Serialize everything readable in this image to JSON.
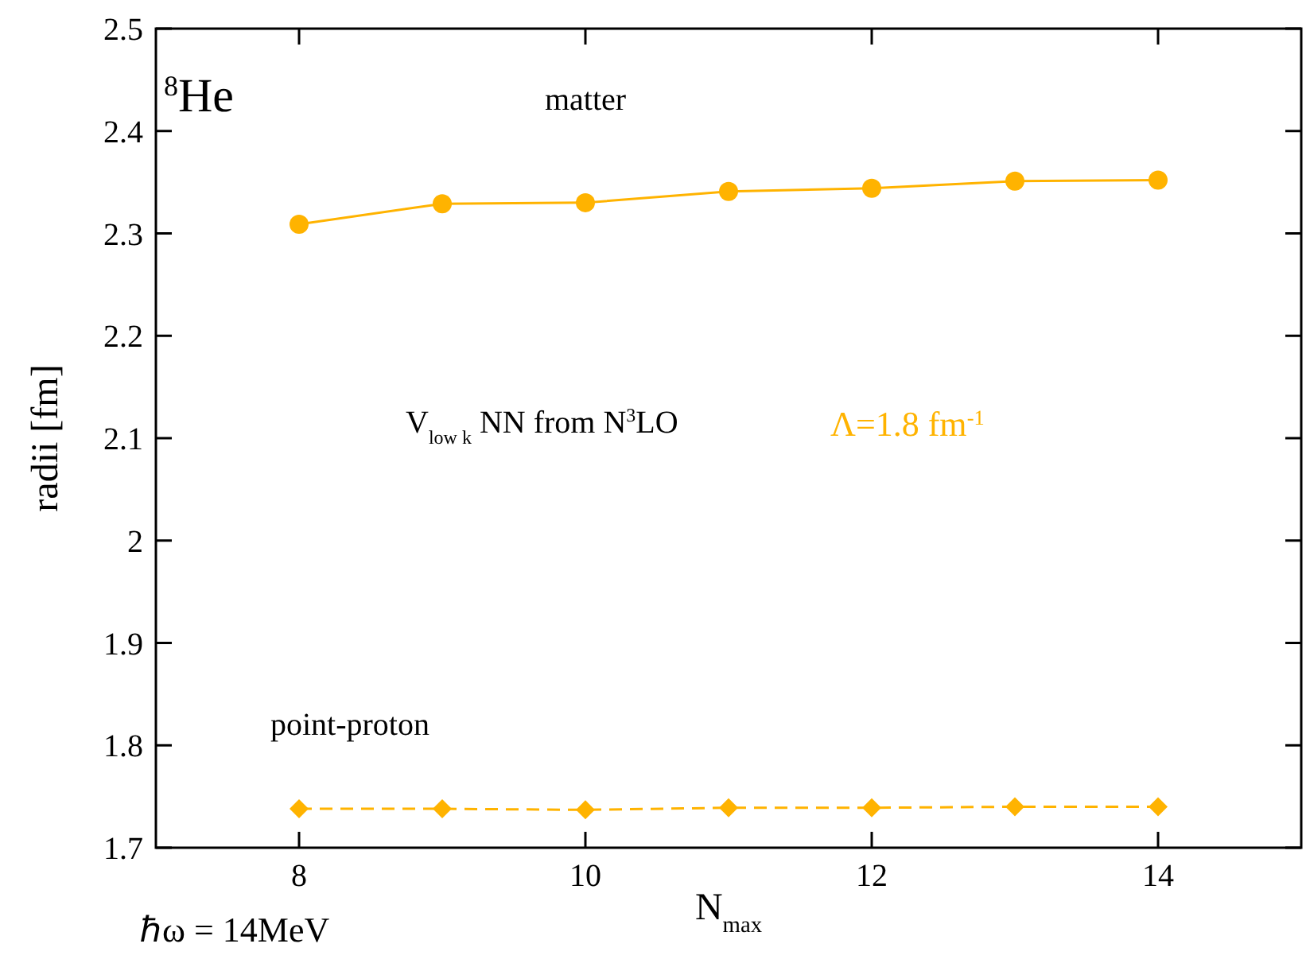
{
  "chart_data": {
    "type": "line",
    "xlabel": "N$_{max}$",
    "ylabel": "radii [fm]",
    "x": [
      8,
      9,
      10,
      11,
      12,
      13,
      14
    ],
    "series": [
      {
        "name": "matter",
        "color": "#ffb300",
        "values": [
          2.309,
          2.329,
          2.33,
          2.341,
          2.344,
          2.351,
          2.352
        ],
        "marker": "circle",
        "line_style": "solid"
      },
      {
        "name": "point-proton",
        "color": "#ffb300",
        "values": [
          1.738,
          1.738,
          1.737,
          1.739,
          1.739,
          1.74,
          1.74
        ],
        "marker": "diamond",
        "line_style": "dashed"
      }
    ],
    "xlim": [
      7,
      15
    ],
    "xticks": [
      8,
      10,
      12,
      14
    ],
    "ylim": [
      1.7,
      2.5
    ],
    "yticks": [
      1.7,
      1.8,
      1.9,
      2,
      2.1,
      2.2,
      2.3,
      2.4,
      2.5
    ],
    "grid": false,
    "annotations": [
      "$^{8}$He",
      "V$_{low k}$ NN  from N$^{3}$LO",
      "Λ=1.8 fm$^{-1}$",
      "ℏω = 14MeV"
    ]
  }
}
